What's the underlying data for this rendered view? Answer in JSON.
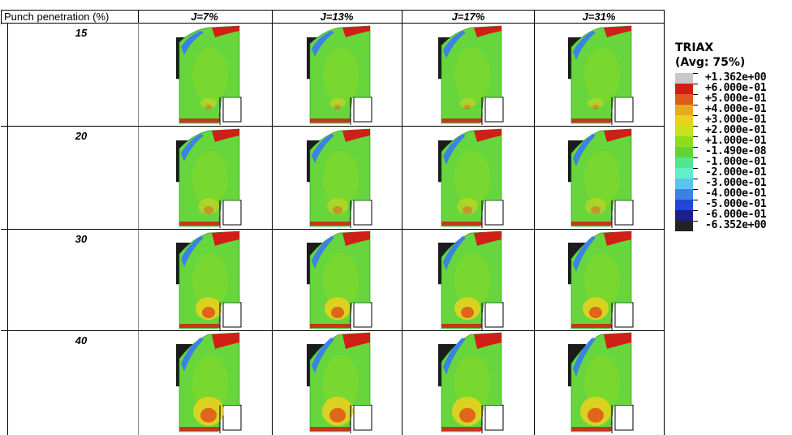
{
  "table": {
    "corner_header": "Punch penetration (%)",
    "columns": [
      "J=7%",
      "J=13%",
      "J=17%",
      "J=31%"
    ],
    "rows": [
      "15",
      "20",
      "30",
      "40"
    ]
  },
  "legend": {
    "title_line1": "TRIAX",
    "title_line2": "(Avg: 75%)",
    "entries": [
      {
        "label": "+1.362e+00",
        "color": "#c8c8c8"
      },
      {
        "label": "+6.000e-01",
        "color": "#cf1f17"
      },
      {
        "label": "+5.000e-01",
        "color": "#df5a1b"
      },
      {
        "label": "+4.000e-01",
        "color": "#e8a81f"
      },
      {
        "label": "+3.000e-01",
        "color": "#e6d21f"
      },
      {
        "label": "+2.000e-01",
        "color": "#c8e21e"
      },
      {
        "label": "+1.000e-01",
        "color": "#8fdc1f"
      },
      {
        "label": "-1.490e-08",
        "color": "#5fd634"
      },
      {
        "label": "-1.000e-01",
        "color": "#54e58f"
      },
      {
        "label": "-2.000e-01",
        "color": "#61eecb"
      },
      {
        "label": "-3.000e-01",
        "color": "#58c6ec"
      },
      {
        "label": "-4.000e-01",
        "color": "#3b82e4"
      },
      {
        "label": "-5.000e-01",
        "color": "#2244d8"
      },
      {
        "label": "-6.000e-01",
        "color": "#1d1d8c"
      },
      {
        "label": "-6.352e+00",
        "color": "#222222"
      }
    ]
  },
  "colors": {
    "grid_line": "#000000",
    "die_block": "#1c1c1c",
    "base_field": "#66d63c"
  }
}
